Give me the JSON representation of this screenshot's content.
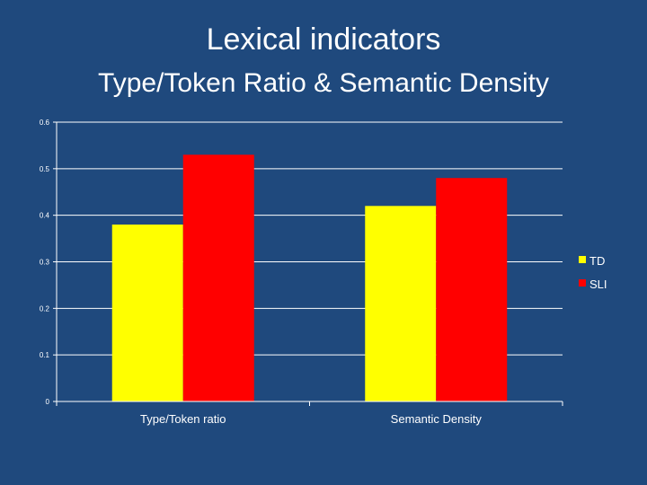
{
  "slide": {
    "title": "Lexical indicators",
    "subtitle": "Type/Token Ratio & Semantic Density"
  },
  "chart_data": {
    "type": "bar",
    "title": "Lexical indicators",
    "subtitle": "Type/Token Ratio & Semantic Density",
    "categories": [
      "Type/Token ratio",
      "Semantic Density"
    ],
    "series": [
      {
        "name": "TD",
        "values": [
          0.38,
          0.42
        ],
        "color": "#ffff00"
      },
      {
        "name": "SLI",
        "values": [
          0.53,
          0.48
        ],
        "color": "#ff0000"
      }
    ],
    "yticks": [
      "0",
      "0.1",
      "0.2",
      "0.3",
      "0.4",
      "0.5",
      "0.6"
    ],
    "ylim": [
      0,
      0.6
    ],
    "xlabel": "",
    "ylabel": "",
    "grid": true,
    "legend": "right"
  }
}
